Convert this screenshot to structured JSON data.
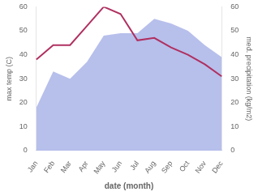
{
  "chart_data": {
    "type": "line",
    "categories": [
      "Jan",
      "Feb",
      "Mar",
      "Apr",
      "May",
      "Jun",
      "Jul",
      "Aug",
      "Sep",
      "Oct",
      "Nov",
      "Dec"
    ],
    "xlabel": "date (month)",
    "ylabel": "max temp (C)",
    "y2label": "med. precipitation (kg/m2)",
    "series": [
      {
        "type": "area",
        "color": "#aab4e8",
        "axis": "y2",
        "values": [
          18,
          33,
          30,
          37,
          48,
          49,
          49,
          55,
          53,
          50,
          44,
          39
        ]
      },
      {
        "type": "line",
        "color": "#b03060",
        "values": [
          38,
          44,
          44,
          52,
          60,
          57,
          46,
          47,
          43,
          40,
          36,
          31
        ]
      }
    ],
    "ylim": [
      0,
      60
    ],
    "yticks": [
      0,
      10,
      20,
      30,
      40,
      50,
      60
    ],
    "y2lim": [
      0,
      60
    ],
    "y2ticks": [
      0,
      10,
      20,
      30,
      40,
      50,
      60
    ],
    "grid": false
  }
}
